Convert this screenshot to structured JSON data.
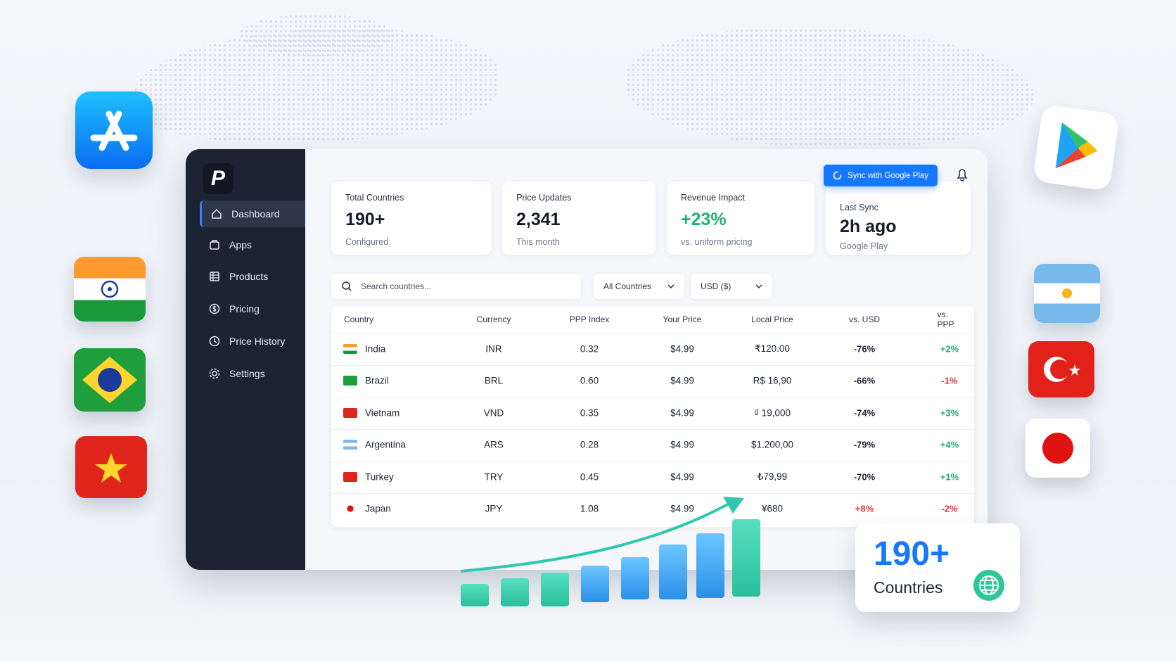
{
  "sidebar": {
    "logo": "P",
    "nav": [
      "Dashboard",
      "Apps",
      "Products",
      "Pricing",
      "Price History",
      "Settings"
    ]
  },
  "header": {
    "sync_button": "Sync with Google Play"
  },
  "stats": [
    {
      "label": "Total Countries",
      "value": "190+",
      "note": "Configured"
    },
    {
      "label": "Price Updates",
      "value": "2,341",
      "note": "This month"
    },
    {
      "label": "Revenue Impact",
      "value": "+23%",
      "note": "vs. uniform pricing"
    },
    {
      "label": "Last Sync",
      "value": "2h ago",
      "note": "Google Play"
    }
  ],
  "filters": {
    "search": "Search countries...",
    "region": "All Countries",
    "currency": "USD ($)"
  },
  "table": {
    "columns": [
      "Country",
      "Currency",
      "PPP Index",
      "Your Price",
      "Local Price",
      "vs. USD",
      "vs. PPP"
    ],
    "rows": [
      [
        "India",
        "INR",
        "0.32",
        "$4.99",
        "₹120.00",
        "-76%",
        "+2%"
      ],
      [
        "Brazil",
        "BRL",
        "0.60",
        "$4.99",
        "R$ 16,90",
        "-66%",
        "-1%"
      ],
      [
        "Vietnam",
        "VND",
        "0.35",
        "$4.99",
        "₫ 19,000",
        "-74%",
        "+3%"
      ],
      [
        "Argentina",
        "ARS",
        "0.28",
        "$4.99",
        "$1.200,00",
        "-79%",
        "+4%"
      ],
      [
        "Turkey",
        "TRY",
        "0.45",
        "$4.99",
        "₺79,99",
        "-70%",
        "+1%"
      ],
      [
        "Japan",
        "JPY",
        "1.08",
        "$4.99",
        "¥680",
        "+8%",
        "-2%"
      ]
    ]
  },
  "badge": {
    "value": "190+",
    "label": "Countries"
  }
}
